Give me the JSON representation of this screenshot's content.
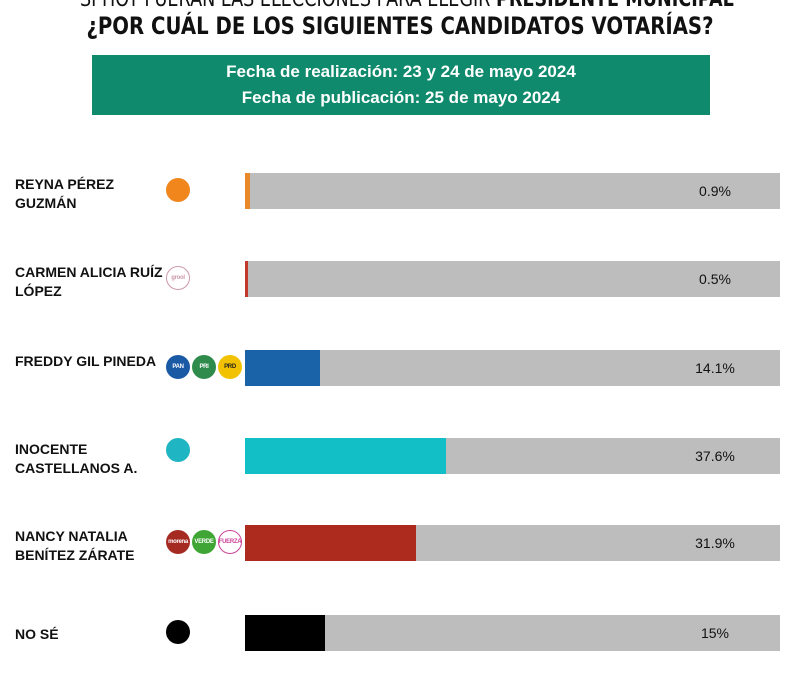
{
  "header": {
    "title_line1_light": "SI HOY FUERAN LAS ELECCIONES PARA ELEGIR ",
    "title_line1_bold": "PRESIDENTE MUNICIPAL",
    "title_line2": "¿POR CUÁL DE LOS SIGUIENTES CANDIDATOS VOTARÍAS?",
    "fecha_realizacion": "Fecha de realización: 23 y 24 de mayo 2024",
    "fecha_publicacion": "Fecha de publicación: 25 de mayo 2024",
    "banner_color": "#0f8a6c"
  },
  "chart_data": {
    "type": "bar",
    "orientation": "horizontal",
    "xlim": [
      0,
      100
    ],
    "track_color": "#bdbdbd",
    "categories": [
      "REYNA PÉREZ GUZMÁN",
      "CARMEN ALICIA RUÍZ LÓPEZ",
      "FREDDY GIL PINEDA",
      "INOCENTE CASTELLANOS A.",
      "NANCY NATALIA BENÍTEZ ZÁRATE",
      "NO SÉ"
    ],
    "values": [
      0.9,
      0.5,
      14.1,
      37.6,
      31.9,
      15
    ],
    "labels": [
      "0.9%",
      "0.5%",
      "14.1%",
      "37.6%",
      "31.9%",
      "15%"
    ],
    "colors": [
      "#e8892a",
      "#c0392b",
      "#1a63a8",
      "#12bfc6",
      "#ad2a1f",
      "#000000"
    ],
    "logos": [
      [
        {
          "name": "movimiento-ciudadano-logo",
          "color": "#f0861c",
          "text": ""
        }
      ],
      [
        {
          "name": "local-party-logo",
          "color": "#ffffff",
          "text": "grool",
          "border": "#c9a"
        }
      ],
      [
        {
          "name": "pan-logo",
          "color": "#1a5aa5",
          "text": "PAN"
        },
        {
          "name": "pri-logo",
          "color": "#2f8b4b",
          "text": "PRI"
        },
        {
          "name": "prd-logo",
          "color": "#f2c200",
          "text": "PRD"
        }
      ],
      [
        {
          "name": "local-party-logo",
          "color": "#20b5c2",
          "text": ""
        }
      ],
      [
        {
          "name": "morena-logo",
          "color": "#a52a22",
          "text": "morena"
        },
        {
          "name": "pvem-logo",
          "color": "#3fa535",
          "text": "VERDE"
        },
        {
          "name": "fuerza-por-mexico-logo",
          "color": "#ffffff",
          "text": "FUERZA",
          "border": "#c49"
        }
      ],
      [
        {
          "name": "black-dot-logo",
          "color": "#000000",
          "text": ""
        }
      ]
    ]
  }
}
